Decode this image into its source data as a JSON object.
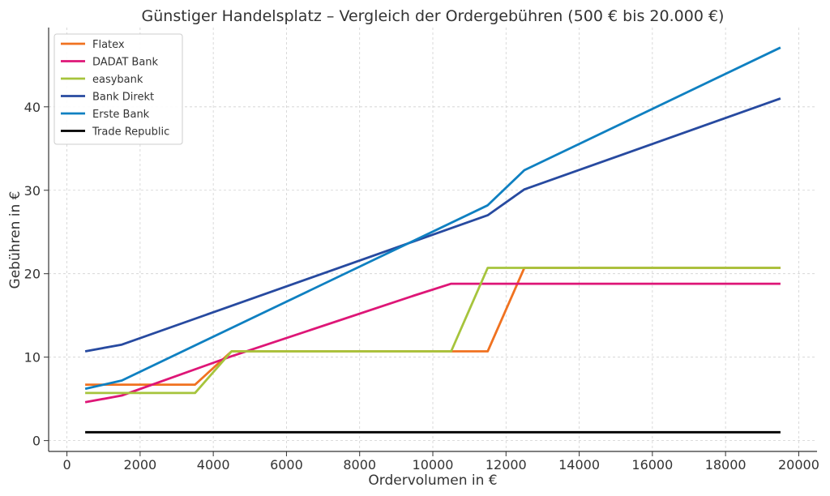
{
  "chart_data": {
    "type": "line",
    "title": "Günstiger Handelsplatz – Vergleich der Ordergebühren (500 € bis 20.000 €)",
    "xlabel": "Ordervolumen in €",
    "ylabel": "Gebühren in €",
    "xlim": [
      -500,
      20500
    ],
    "ylim": [
      -1.3,
      49.5
    ],
    "xticks": [
      0,
      2000,
      4000,
      6000,
      8000,
      10000,
      12000,
      14000,
      16000,
      18000,
      20000
    ],
    "yticks": [
      0,
      10,
      20,
      30,
      40
    ],
    "grid": true,
    "legend_position": "top-left",
    "series": [
      {
        "name": "Flatex",
        "color": "#f07220",
        "x": [
          500,
          1500,
          3500,
          4500,
          11500,
          12500,
          19500
        ],
        "y": [
          6.7,
          6.7,
          6.7,
          10.7,
          10.7,
          20.7,
          20.7
        ]
      },
      {
        "name": "DADAT Bank",
        "color": "#de1677",
        "x": [
          500,
          1500,
          4500,
          9500,
          10500,
          19500
        ],
        "y": [
          4.6,
          5.4,
          10.1,
          17.4,
          18.8,
          18.8
        ]
      },
      {
        "name": "easybank",
        "color": "#a6c43c",
        "x": [
          500,
          1500,
          3500,
          4500,
          10500,
          11500,
          19500
        ],
        "y": [
          5.7,
          5.7,
          5.7,
          10.7,
          10.7,
          20.7,
          20.7
        ]
      },
      {
        "name": "Bank Direkt",
        "color": "#274aa0",
        "x": [
          500,
          1500,
          11500,
          12500,
          19500
        ],
        "y": [
          10.7,
          11.5,
          27.0,
          30.1,
          41.0
        ]
      },
      {
        "name": "Erste Bank",
        "color": "#0f80c1",
        "x": [
          500,
          1500,
          11500,
          12500,
          19500
        ],
        "y": [
          6.2,
          7.2,
          28.2,
          32.4,
          47.1
        ]
      },
      {
        "name": "Trade Republic",
        "color": "#000000",
        "x": [
          500,
          19500
        ],
        "y": [
          1.0,
          1.0
        ]
      }
    ]
  }
}
